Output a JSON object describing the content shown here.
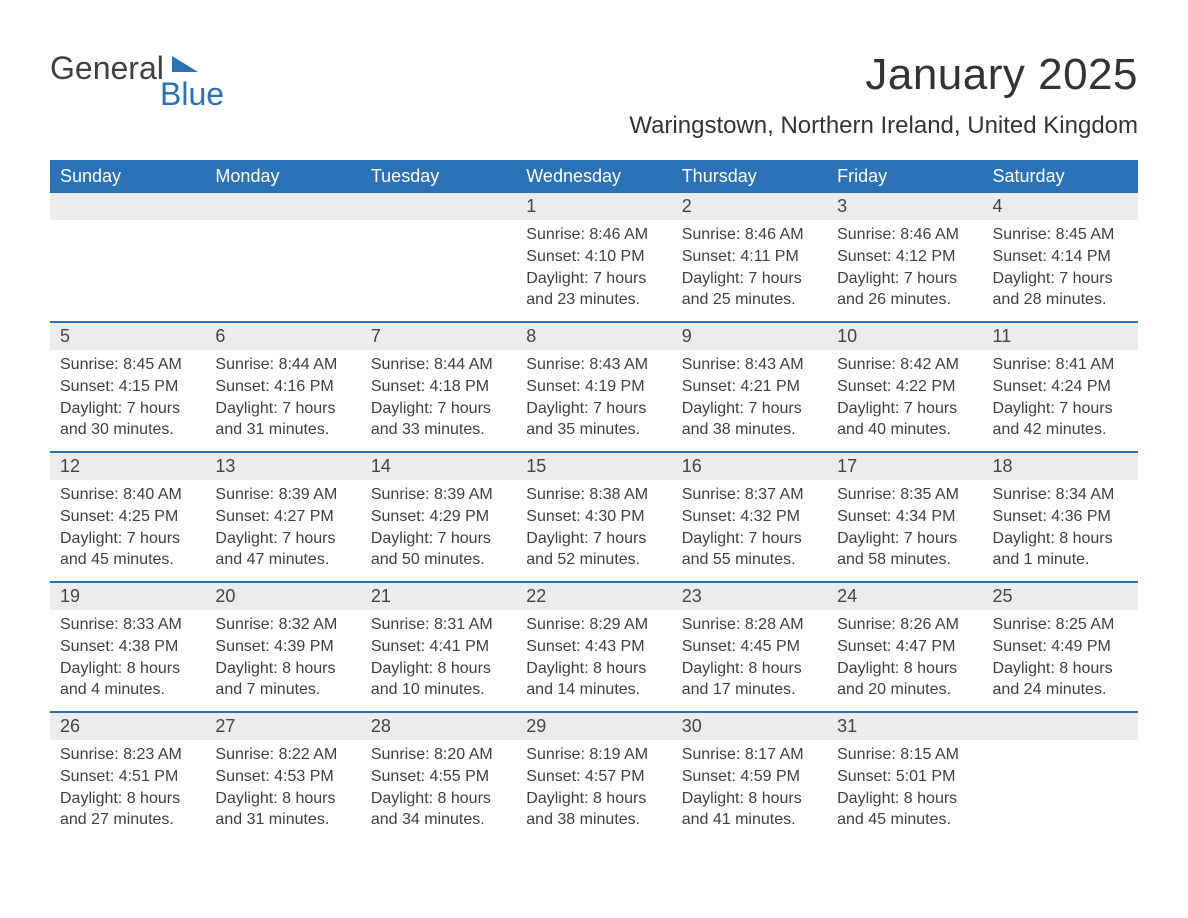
{
  "brand": {
    "part1": "General",
    "part2": "Blue"
  },
  "title": "January 2025",
  "location": "Waringstown, Northern Ireland, United Kingdom",
  "colors": {
    "header_bg": "#2a72b5",
    "header_text": "#ffffff",
    "daynum_bg": "#ececec",
    "body_text": "#404040",
    "page_bg": "#ffffff",
    "rule": "#2a72b5",
    "brand_gray": "#404040",
    "brand_blue": "#2a72b5"
  },
  "typography": {
    "title_fontsize": 44,
    "location_fontsize": 24,
    "header_fontsize": 18,
    "daynum_fontsize": 18,
    "body_fontsize": 16
  },
  "weekdays": [
    "Sunday",
    "Monday",
    "Tuesday",
    "Wednesday",
    "Thursday",
    "Friday",
    "Saturday"
  ],
  "weeks": [
    [
      {
        "day": "",
        "sunrise": "",
        "sunset": "",
        "daylight": ""
      },
      {
        "day": "",
        "sunrise": "",
        "sunset": "",
        "daylight": ""
      },
      {
        "day": "",
        "sunrise": "",
        "sunset": "",
        "daylight": ""
      },
      {
        "day": "1",
        "sunrise": "Sunrise: 8:46 AM",
        "sunset": "Sunset: 4:10 PM",
        "daylight": "Daylight: 7 hours and 23 minutes."
      },
      {
        "day": "2",
        "sunrise": "Sunrise: 8:46 AM",
        "sunset": "Sunset: 4:11 PM",
        "daylight": "Daylight: 7 hours and 25 minutes."
      },
      {
        "day": "3",
        "sunrise": "Sunrise: 8:46 AM",
        "sunset": "Sunset: 4:12 PM",
        "daylight": "Daylight: 7 hours and 26 minutes."
      },
      {
        "day": "4",
        "sunrise": "Sunrise: 8:45 AM",
        "sunset": "Sunset: 4:14 PM",
        "daylight": "Daylight: 7 hours and 28 minutes."
      }
    ],
    [
      {
        "day": "5",
        "sunrise": "Sunrise: 8:45 AM",
        "sunset": "Sunset: 4:15 PM",
        "daylight": "Daylight: 7 hours and 30 minutes."
      },
      {
        "day": "6",
        "sunrise": "Sunrise: 8:44 AM",
        "sunset": "Sunset: 4:16 PM",
        "daylight": "Daylight: 7 hours and 31 minutes."
      },
      {
        "day": "7",
        "sunrise": "Sunrise: 8:44 AM",
        "sunset": "Sunset: 4:18 PM",
        "daylight": "Daylight: 7 hours and 33 minutes."
      },
      {
        "day": "8",
        "sunrise": "Sunrise: 8:43 AM",
        "sunset": "Sunset: 4:19 PM",
        "daylight": "Daylight: 7 hours and 35 minutes."
      },
      {
        "day": "9",
        "sunrise": "Sunrise: 8:43 AM",
        "sunset": "Sunset: 4:21 PM",
        "daylight": "Daylight: 7 hours and 38 minutes."
      },
      {
        "day": "10",
        "sunrise": "Sunrise: 8:42 AM",
        "sunset": "Sunset: 4:22 PM",
        "daylight": "Daylight: 7 hours and 40 minutes."
      },
      {
        "day": "11",
        "sunrise": "Sunrise: 8:41 AM",
        "sunset": "Sunset: 4:24 PM",
        "daylight": "Daylight: 7 hours and 42 minutes."
      }
    ],
    [
      {
        "day": "12",
        "sunrise": "Sunrise: 8:40 AM",
        "sunset": "Sunset: 4:25 PM",
        "daylight": "Daylight: 7 hours and 45 minutes."
      },
      {
        "day": "13",
        "sunrise": "Sunrise: 8:39 AM",
        "sunset": "Sunset: 4:27 PM",
        "daylight": "Daylight: 7 hours and 47 minutes."
      },
      {
        "day": "14",
        "sunrise": "Sunrise: 8:39 AM",
        "sunset": "Sunset: 4:29 PM",
        "daylight": "Daylight: 7 hours and 50 minutes."
      },
      {
        "day": "15",
        "sunrise": "Sunrise: 8:38 AM",
        "sunset": "Sunset: 4:30 PM",
        "daylight": "Daylight: 7 hours and 52 minutes."
      },
      {
        "day": "16",
        "sunrise": "Sunrise: 8:37 AM",
        "sunset": "Sunset: 4:32 PM",
        "daylight": "Daylight: 7 hours and 55 minutes."
      },
      {
        "day": "17",
        "sunrise": "Sunrise: 8:35 AM",
        "sunset": "Sunset: 4:34 PM",
        "daylight": "Daylight: 7 hours and 58 minutes."
      },
      {
        "day": "18",
        "sunrise": "Sunrise: 8:34 AM",
        "sunset": "Sunset: 4:36 PM",
        "daylight": "Daylight: 8 hours and 1 minute."
      }
    ],
    [
      {
        "day": "19",
        "sunrise": "Sunrise: 8:33 AM",
        "sunset": "Sunset: 4:38 PM",
        "daylight": "Daylight: 8 hours and 4 minutes."
      },
      {
        "day": "20",
        "sunrise": "Sunrise: 8:32 AM",
        "sunset": "Sunset: 4:39 PM",
        "daylight": "Daylight: 8 hours and 7 minutes."
      },
      {
        "day": "21",
        "sunrise": "Sunrise: 8:31 AM",
        "sunset": "Sunset: 4:41 PM",
        "daylight": "Daylight: 8 hours and 10 minutes."
      },
      {
        "day": "22",
        "sunrise": "Sunrise: 8:29 AM",
        "sunset": "Sunset: 4:43 PM",
        "daylight": "Daylight: 8 hours and 14 minutes."
      },
      {
        "day": "23",
        "sunrise": "Sunrise: 8:28 AM",
        "sunset": "Sunset: 4:45 PM",
        "daylight": "Daylight: 8 hours and 17 minutes."
      },
      {
        "day": "24",
        "sunrise": "Sunrise: 8:26 AM",
        "sunset": "Sunset: 4:47 PM",
        "daylight": "Daylight: 8 hours and 20 minutes."
      },
      {
        "day": "25",
        "sunrise": "Sunrise: 8:25 AM",
        "sunset": "Sunset: 4:49 PM",
        "daylight": "Daylight: 8 hours and 24 minutes."
      }
    ],
    [
      {
        "day": "26",
        "sunrise": "Sunrise: 8:23 AM",
        "sunset": "Sunset: 4:51 PM",
        "daylight": "Daylight: 8 hours and 27 minutes."
      },
      {
        "day": "27",
        "sunrise": "Sunrise: 8:22 AM",
        "sunset": "Sunset: 4:53 PM",
        "daylight": "Daylight: 8 hours and 31 minutes."
      },
      {
        "day": "28",
        "sunrise": "Sunrise: 8:20 AM",
        "sunset": "Sunset: 4:55 PM",
        "daylight": "Daylight: 8 hours and 34 minutes."
      },
      {
        "day": "29",
        "sunrise": "Sunrise: 8:19 AM",
        "sunset": "Sunset: 4:57 PM",
        "daylight": "Daylight: 8 hours and 38 minutes."
      },
      {
        "day": "30",
        "sunrise": "Sunrise: 8:17 AM",
        "sunset": "Sunset: 4:59 PM",
        "daylight": "Daylight: 8 hours and 41 minutes."
      },
      {
        "day": "31",
        "sunrise": "Sunrise: 8:15 AM",
        "sunset": "Sunset: 5:01 PM",
        "daylight": "Daylight: 8 hours and 45 minutes."
      },
      {
        "day": "",
        "sunrise": "",
        "sunset": "",
        "daylight": ""
      }
    ]
  ]
}
